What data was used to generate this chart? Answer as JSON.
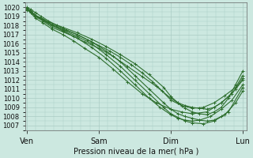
{
  "bg_color": "#cce8e0",
  "grid_color": "#aaccC4",
  "line_color": "#2d6e2d",
  "marker": "+",
  "markersize": 2.5,
  "linewidth": 0.8,
  "xlabel_text": "Pression niveau de la mer( hPa )",
  "xtick_labels": [
    "Ven",
    "Sam",
    "Dim",
    "Lun"
  ],
  "xtick_positions": [
    0,
    1,
    2,
    3
  ],
  "ylim": [
    1006.5,
    1020.5
  ],
  "yticks": [
    1007,
    1008,
    1009,
    1010,
    1011,
    1012,
    1013,
    1014,
    1015,
    1016,
    1017,
    1018,
    1019,
    1020
  ],
  "xlim": [
    -0.02,
    3.05
  ],
  "lines": [
    {
      "x": [
        0.0,
        0.05,
        0.12,
        0.22,
        0.35,
        0.5,
        0.65,
        0.8,
        1.0,
        1.2,
        1.4,
        1.6,
        1.8,
        2.0,
        2.1,
        2.2,
        2.3,
        2.4,
        2.5,
        2.6,
        2.7,
        2.8,
        2.9,
        3.0
      ],
      "y": [
        1019.8,
        1019.5,
        1019.0,
        1018.5,
        1017.8,
        1017.3,
        1016.8,
        1016.2,
        1015.5,
        1014.6,
        1013.5,
        1012.4,
        1011.3,
        1010.0,
        1009.5,
        1009.2,
        1009.0,
        1008.9,
        1008.8,
        1009.0,
        1009.5,
        1010.2,
        1011.0,
        1012.0
      ]
    },
    {
      "x": [
        0.0,
        0.05,
        0.12,
        0.22,
        0.35,
        0.5,
        0.7,
        0.9,
        1.1,
        1.3,
        1.5,
        1.7,
        1.9,
        2.0,
        2.1,
        2.2,
        2.3,
        2.45,
        2.6,
        2.75,
        2.9,
        3.0
      ],
      "y": [
        1019.9,
        1019.6,
        1019.1,
        1018.6,
        1018.0,
        1017.5,
        1016.8,
        1016.0,
        1014.8,
        1013.5,
        1012.0,
        1010.5,
        1009.0,
        1008.3,
        1007.9,
        1007.5,
        1007.3,
        1007.2,
        1007.5,
        1008.2,
        1009.5,
        1010.8
      ]
    },
    {
      "x": [
        0.0,
        0.05,
        0.12,
        0.22,
        0.35,
        0.5,
        0.7,
        0.9,
        1.1,
        1.3,
        1.5,
        1.7,
        1.9,
        2.0,
        2.1,
        2.2,
        2.3,
        2.4,
        2.5,
        2.6,
        2.7,
        2.8,
        3.0
      ],
      "y": [
        1019.9,
        1019.6,
        1019.1,
        1018.7,
        1018.1,
        1017.6,
        1017.0,
        1016.2,
        1015.2,
        1014.0,
        1012.5,
        1011.0,
        1009.5,
        1008.8,
        1008.3,
        1008.0,
        1007.8,
        1007.6,
        1007.5,
        1007.6,
        1008.0,
        1008.5,
        1011.2
      ]
    },
    {
      "x": [
        0.0,
        0.05,
        0.12,
        0.22,
        0.35,
        0.5,
        0.7,
        0.9,
        1.1,
        1.3,
        1.5,
        1.7,
        1.85,
        2.0,
        2.1,
        2.2,
        2.3,
        2.4,
        2.55,
        2.7,
        2.85,
        3.0
      ],
      "y": [
        1019.8,
        1019.5,
        1019.0,
        1018.6,
        1018.0,
        1017.4,
        1016.6,
        1015.6,
        1014.4,
        1013.0,
        1011.5,
        1010.0,
        1009.0,
        1008.2,
        1007.8,
        1007.6,
        1007.5,
        1007.6,
        1008.0,
        1008.8,
        1009.8,
        1011.5
      ]
    },
    {
      "x": [
        0.0,
        0.05,
        0.12,
        0.22,
        0.35,
        0.5,
        0.65,
        0.8,
        1.0,
        1.2,
        1.4,
        1.6,
        1.8,
        2.0,
        2.15,
        2.3,
        2.5,
        2.7,
        2.85,
        3.0
      ],
      "y": [
        1019.8,
        1019.4,
        1018.8,
        1018.3,
        1017.6,
        1017.0,
        1016.3,
        1015.5,
        1014.5,
        1013.2,
        1011.8,
        1010.5,
        1009.5,
        1008.8,
        1008.5,
        1008.3,
        1008.5,
        1009.5,
        1010.5,
        1012.2
      ]
    },
    {
      "x": [
        0.0,
        0.05,
        0.12,
        0.2,
        0.3,
        0.42,
        0.55,
        0.7,
        0.85,
        1.0,
        1.15,
        1.3,
        1.45,
        1.6,
        1.75,
        1.88,
        2.0,
        2.15,
        2.3,
        2.45,
        2.6,
        2.75,
        2.9,
        3.0
      ],
      "y": [
        1020.0,
        1019.8,
        1019.4,
        1019.0,
        1018.5,
        1018.0,
        1017.5,
        1017.0,
        1016.4,
        1015.8,
        1015.2,
        1014.5,
        1013.7,
        1012.8,
        1011.8,
        1010.8,
        1009.8,
        1009.2,
        1008.9,
        1009.0,
        1009.5,
        1010.3,
        1011.2,
        1012.5
      ]
    },
    {
      "x": [
        0.0,
        0.1,
        0.3,
        0.5,
        0.7,
        0.9,
        1.1,
        1.3,
        1.5,
        1.7,
        1.9,
        2.0,
        2.1,
        2.2,
        2.3,
        2.4,
        2.5,
        2.6,
        2.7,
        2.8,
        2.9,
        3.0
      ],
      "y": [
        1019.7,
        1019.2,
        1018.4,
        1017.8,
        1017.2,
        1016.5,
        1015.7,
        1014.8,
        1013.8,
        1012.6,
        1011.2,
        1010.2,
        1009.5,
        1008.9,
        1008.5,
        1008.3,
        1008.2,
        1008.5,
        1009.0,
        1010.0,
        1011.5,
        1013.0
      ]
    }
  ]
}
